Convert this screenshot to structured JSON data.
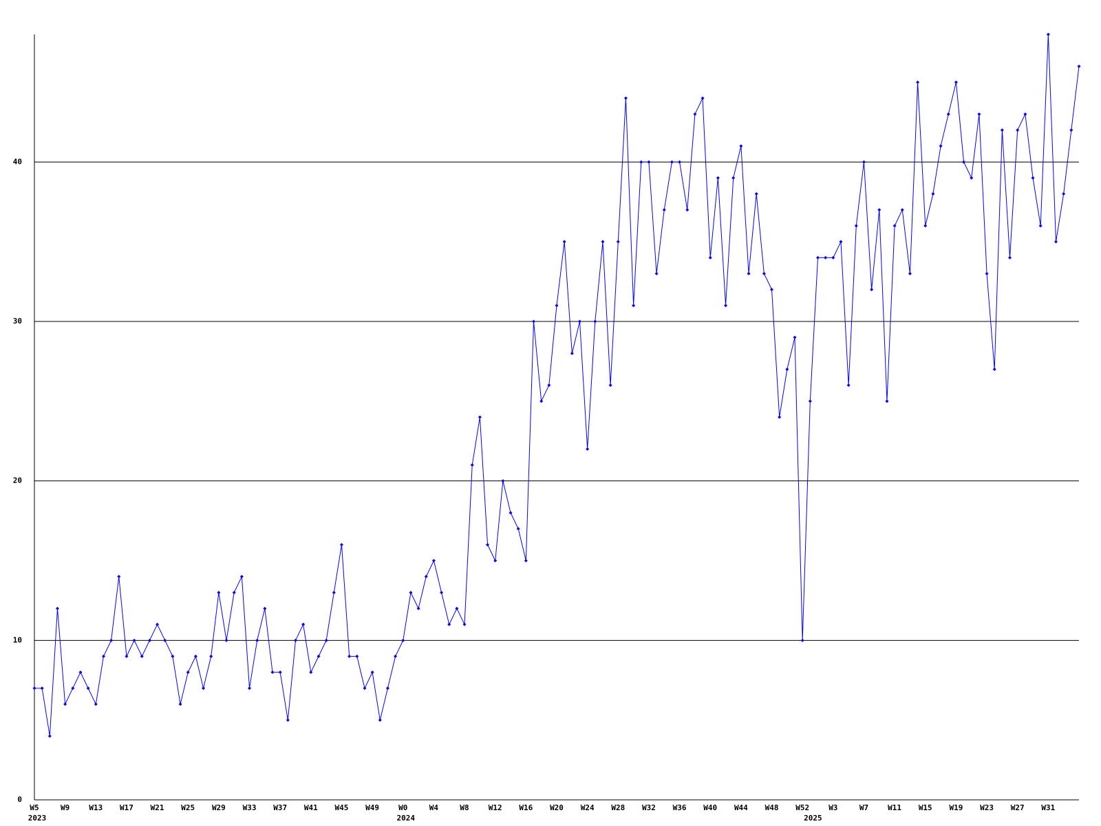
{
  "chart_data": {
    "type": "line",
    "color": "#0000ff",
    "grid": true,
    "ylim": [
      0,
      48
    ],
    "yticks": [
      0,
      10,
      20,
      30,
      40
    ],
    "categories": [
      "W5",
      null,
      null,
      null,
      "W9",
      null,
      null,
      null,
      "W13",
      null,
      null,
      null,
      "W17",
      null,
      null,
      null,
      "W21",
      null,
      null,
      null,
      "W25",
      null,
      null,
      null,
      "W29",
      null,
      null,
      null,
      "W33",
      null,
      null,
      null,
      "W37",
      null,
      null,
      null,
      "W41",
      null,
      null,
      null,
      "W45",
      null,
      null,
      null,
      "W49",
      null,
      null,
      null,
      "W0",
      null,
      null,
      null,
      "W4",
      null,
      null,
      null,
      "W8",
      null,
      null,
      null,
      "W12",
      null,
      null,
      null,
      "W16",
      null,
      null,
      null,
      "W20",
      null,
      null,
      null,
      "W24",
      null,
      null,
      null,
      "W28",
      null,
      null,
      null,
      "W32",
      null,
      null,
      null,
      "W36",
      null,
      null,
      null,
      "W40",
      null,
      null,
      null,
      "W44",
      null,
      null,
      null,
      "W48",
      null,
      null,
      null,
      "W52",
      null,
      null,
      null,
      "W3",
      null,
      null,
      null,
      "W7",
      null,
      null,
      null,
      "W11",
      null,
      null,
      null,
      "W15",
      null,
      null,
      null,
      "W19",
      null,
      null,
      null,
      "W23",
      null,
      null,
      null,
      "W27",
      null,
      null,
      null,
      "W31",
      null,
      null,
      null,
      null
    ],
    "year_labels": [
      "2023",
      null,
      null,
      null,
      null,
      null,
      null,
      null,
      null,
      null,
      null,
      null,
      null,
      null,
      null,
      null,
      null,
      null,
      null,
      null,
      null,
      null,
      null,
      null,
      null,
      null,
      null,
      null,
      null,
      null,
      null,
      null,
      null,
      null,
      null,
      null,
      null,
      null,
      null,
      null,
      null,
      null,
      null,
      null,
      null,
      null,
      null,
      null,
      "2024",
      null,
      null,
      null,
      null,
      null,
      null,
      null,
      null,
      null,
      null,
      null,
      null,
      null,
      null,
      null,
      null,
      null,
      null,
      null,
      null,
      null,
      null,
      null,
      null,
      null,
      null,
      null,
      null,
      null,
      null,
      null,
      null,
      null,
      null,
      null,
      null,
      null,
      null,
      null,
      null,
      null,
      null,
      null,
      null,
      null,
      null,
      null,
      null,
      null,
      null,
      null,
      null,
      "2025",
      null,
      null,
      null,
      null,
      null,
      null,
      null,
      null,
      null,
      null,
      null,
      null,
      null,
      null,
      null,
      null,
      null,
      null,
      null,
      null,
      null,
      null,
      null,
      null,
      null,
      null,
      null,
      null,
      null,
      null,
      null,
      null,
      null,
      null,
      null
    ],
    "values": [
      7,
      7,
      4,
      12,
      6,
      7,
      8,
      7,
      6,
      9,
      10,
      14,
      9,
      10,
      9,
      10,
      11,
      10,
      9,
      6,
      8,
      9,
      7,
      9,
      13,
      10,
      13,
      14,
      7,
      10,
      12,
      8,
      8,
      5,
      10,
      11,
      8,
      9,
      10,
      13,
      16,
      9,
      9,
      7,
      8,
      5,
      7,
      9,
      10,
      13,
      12,
      14,
      15,
      13,
      11,
      12,
      11,
      21,
      24,
      16,
      15,
      20,
      18,
      17,
      15,
      30,
      25,
      26,
      31,
      35,
      28,
      30,
      22,
      30,
      35,
      26,
      35,
      44,
      31,
      40,
      40,
      33,
      37,
      40,
      40,
      37,
      43,
      44,
      34,
      39,
      31,
      39,
      41,
      33,
      38,
      33,
      32,
      24,
      27,
      29,
      10,
      25,
      34,
      34,
      34,
      35,
      26,
      36,
      40,
      32,
      37,
      25,
      36,
      37,
      33,
      45,
      36,
      38,
      41,
      43,
      45,
      40,
      39,
      43,
      33,
      27,
      42,
      34,
      42,
      43,
      39,
      36,
      48,
      35,
      38,
      42,
      46
    ]
  }
}
